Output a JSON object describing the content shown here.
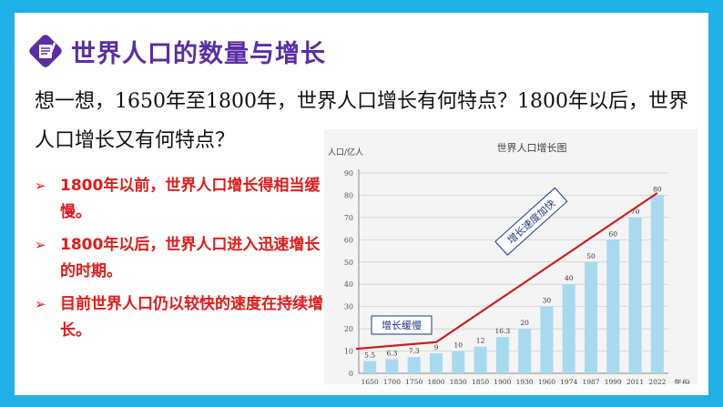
{
  "title": "世界人口的数量与增长",
  "question": "想一想，1650年至1800年，世界人口增长有何特点？1800年以后，世界人口增长又有何特点？",
  "bullets": [
    "1800年以前，世界人口增长得相当缓慢。",
    "1800年以后，世界人口进入迅速增长的时期。",
    "目前世界人口仍以较快的速度在持续增长。"
  ],
  "colors": {
    "border": "#1fb0e6",
    "title": "#5a2ea6",
    "bullet": "#e11b1b",
    "bar": "#a9d9ef",
    "trend": "#cc1f1f"
  },
  "chart_data": {
    "type": "bar",
    "title": "世界人口增长图",
    "ylabel": "人口/亿人",
    "xlabel": "年份",
    "ylim": [
      0,
      90
    ],
    "yticks": [
      0,
      10,
      20,
      30,
      40,
      50,
      60,
      70,
      80,
      90
    ],
    "categories": [
      "1650",
      "1700",
      "1750",
      "1800",
      "1830",
      "1850",
      "1900",
      "1930",
      "1960",
      "1974",
      "1987",
      "1999",
      "2011",
      "2022"
    ],
    "values": [
      5.5,
      6.3,
      7.3,
      9,
      10,
      12,
      16.3,
      20,
      30,
      40,
      50,
      60,
      70,
      80
    ],
    "value_labels": [
      "5.5",
      "6.3",
      "7.3",
      "9",
      "10",
      "12",
      "16.3",
      "20",
      "30",
      "40",
      "50",
      "60",
      "70",
      "80"
    ],
    "grid": true,
    "trend_line": [
      {
        "x": "1650",
        "y": 11
      },
      {
        "x": "1800",
        "y": 14
      },
      {
        "x": "2022",
        "y": 81
      }
    ],
    "annotations": [
      {
        "text": "增长缓慢"
      },
      {
        "text": "增长速度加快"
      }
    ]
  }
}
